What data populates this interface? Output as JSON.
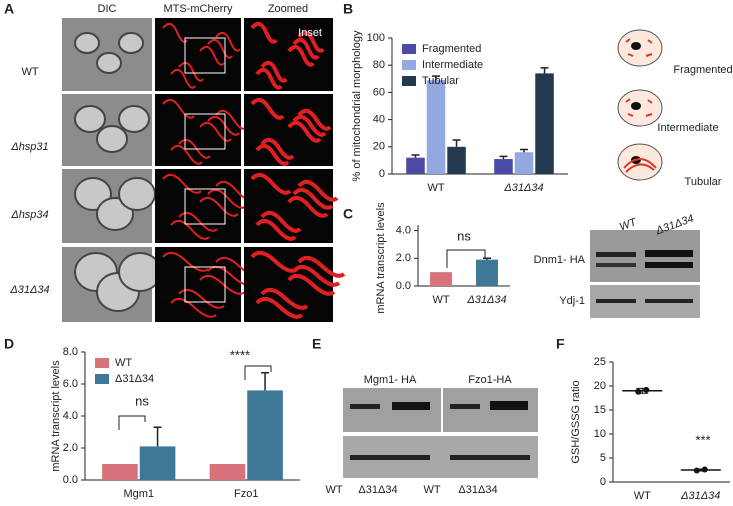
{
  "panel_labels": [
    "A",
    "B",
    "C",
    "D",
    "E",
    "F"
  ],
  "panel_a": {
    "columns": [
      "DIC",
      "MTS-mCherry",
      "Zoomed"
    ],
    "rows": [
      "WT",
      "Δhsp31",
      "Δhsp34",
      "Δ31Δ34"
    ],
    "inset": "Inset"
  },
  "panel_b_cartoons": [
    "Fragmented",
    "Intermediate",
    "Tubular"
  ],
  "panel_c_blot": {
    "lanes": [
      "WT",
      "Δ31Δ34"
    ],
    "bands": [
      "Dnm1- HA",
      "Ydj-1"
    ]
  },
  "panel_e_blot": {
    "proteins": [
      "Mgm1- HA",
      "Fzo1-HA"
    ],
    "lanes": [
      "WT",
      "Δ31Δ34",
      "WT",
      "Δ31Δ34"
    ]
  },
  "chart_data": [
    {
      "type": "bar",
      "ylabel": "% of mitochondrial  morphology",
      "categories": [
        "WT",
        "Δ31Δ34"
      ],
      "series": [
        {
          "name": "Fragmented",
          "color": "#4b4ba6",
          "values": [
            12,
            11
          ],
          "errors": [
            2,
            2
          ]
        },
        {
          "name": "Intermediate",
          "color": "#93a8e0",
          "values": [
            69,
            16
          ],
          "errors": [
            3,
            2
          ]
        },
        {
          "name": "Tubular",
          "color": "#23394f",
          "values": [
            20,
            74
          ],
          "errors": [
            5,
            4
          ]
        }
      ],
      "ylim": [
        0,
        100
      ],
      "yticks": [
        0,
        20,
        40,
        60,
        80,
        100
      ],
      "legend": "upper left"
    },
    {
      "type": "bar",
      "ylabel": "mRNA transcript  levels",
      "categories": [
        "WT",
        "Δ31Δ34"
      ],
      "values": [
        1.0,
        1.9
      ],
      "errors": [
        null,
        0.1
      ],
      "colors": [
        "#d9737b",
        "#3e7896"
      ],
      "ylim": [
        0,
        4.4
      ],
      "yticks": [
        {
          "value": 0,
          "label": "0.0"
        },
        {
          "value": 2,
          "label": "2.0"
        },
        {
          "value": 4,
          "label": "4.0"
        }
      ],
      "annotations": [
        "ns"
      ]
    },
    {
      "type": "bar",
      "ylabel": "mRNA transcript levels",
      "categories": [
        "Mgm1",
        "Fzo1"
      ],
      "series": [
        {
          "name": "WT",
          "color": "#d9737b",
          "values": [
            1,
            1
          ]
        },
        {
          "name": "Δ31Δ34",
          "color": "#3e7896",
          "values": [
            2.1,
            5.6
          ],
          "errors": [
            1.2,
            1.1
          ]
        }
      ],
      "ylim": [
        0,
        8
      ],
      "yticks": [
        {
          "value": 0,
          "label": "0.0"
        },
        {
          "value": 2,
          "label": "2.0"
        },
        {
          "value": 4,
          "label": "4.0"
        },
        {
          "value": 6,
          "label": "6.0"
        },
        {
          "value": 8,
          "label": "8.0"
        }
      ],
      "legend": "upper left",
      "annotations": [
        "ns",
        "****"
      ]
    },
    {
      "type": "dot",
      "ylabel": "GSH/GSSG ratio",
      "categories": [
        "WT",
        "Δ31Δ34"
      ],
      "values": [
        19,
        2.5
      ],
      "errors": [
        0.5,
        0.2
      ],
      "points": [
        [
          18.8,
          19.2
        ],
        [
          2.4,
          2.6
        ]
      ],
      "color": "#111111",
      "ylim": [
        0,
        25
      ],
      "yticks": [
        0,
        5,
        10,
        15,
        20,
        25
      ],
      "annotations": [
        "***"
      ]
    }
  ]
}
